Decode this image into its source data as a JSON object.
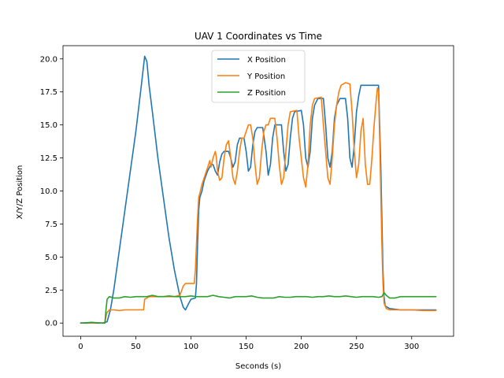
{
  "chart_data": {
    "type": "line",
    "title": "UAV 1 Coordinates vs Time",
    "xlabel": "Seconds (s)",
    "ylabel": "X/Y/Z Position",
    "xlim": [
      -16,
      338
    ],
    "ylim": [
      -1,
      21
    ],
    "xticks": [
      0,
      50,
      100,
      150,
      200,
      250,
      300
    ],
    "yticks": [
      0.0,
      2.5,
      5.0,
      7.5,
      10.0,
      12.5,
      15.0,
      17.5,
      20.0
    ],
    "xtick_labels": [
      "0",
      "50",
      "100",
      "150",
      "200",
      "250",
      "300"
    ],
    "ytick_labels": [
      "0.0",
      "2.5",
      "5.0",
      "7.5",
      "10.0",
      "12.5",
      "15.0",
      "17.5",
      "20.0"
    ],
    "legend": "upper-center",
    "series": [
      {
        "name": "X Position",
        "color": "#1f77b4",
        "points": [
          [
            0,
            0
          ],
          [
            10,
            0.05
          ],
          [
            20,
            0
          ],
          [
            24,
            0.1
          ],
          [
            27,
            1
          ],
          [
            30,
            2.5
          ],
          [
            35,
            5.5
          ],
          [
            40,
            8.5
          ],
          [
            45,
            11.5
          ],
          [
            50,
            14.5
          ],
          [
            55,
            18
          ],
          [
            58,
            20.2
          ],
          [
            60,
            19.8
          ],
          [
            62,
            18
          ],
          [
            65,
            16
          ],
          [
            70,
            12.5
          ],
          [
            75,
            9.5
          ],
          [
            80,
            6.5
          ],
          [
            85,
            4
          ],
          [
            90,
            2
          ],
          [
            93,
            1.2
          ],
          [
            95,
            1
          ],
          [
            98,
            1.5
          ],
          [
            100,
            1.8
          ],
          [
            104,
            1.9
          ],
          [
            105,
            3
          ],
          [
            106,
            6
          ],
          [
            107,
            8.5
          ],
          [
            108,
            9.5
          ],
          [
            110,
            10
          ],
          [
            112,
            10.8
          ],
          [
            115,
            11.5
          ],
          [
            118,
            12
          ],
          [
            120,
            12
          ],
          [
            122,
            11.5
          ],
          [
            124,
            11.2
          ],
          [
            126,
            12.2
          ],
          [
            128,
            12.8
          ],
          [
            130,
            13
          ],
          [
            134,
            13
          ],
          [
            136,
            12.5
          ],
          [
            138,
            11.8
          ],
          [
            140,
            12.2
          ],
          [
            142,
            13.5
          ],
          [
            144,
            14
          ],
          [
            148,
            14
          ],
          [
            150,
            13
          ],
          [
            152,
            11.5
          ],
          [
            154,
            11.8
          ],
          [
            156,
            13.5
          ],
          [
            158,
            14.5
          ],
          [
            160,
            14.8
          ],
          [
            165,
            14.8
          ],
          [
            168,
            13
          ],
          [
            170,
            11.2
          ],
          [
            172,
            12
          ],
          [
            174,
            14
          ],
          [
            176,
            15
          ],
          [
            182,
            15
          ],
          [
            184,
            13
          ],
          [
            186,
            11.5
          ],
          [
            188,
            12
          ],
          [
            190,
            14
          ],
          [
            192,
            15.5
          ],
          [
            194,
            16
          ],
          [
            200,
            16.1
          ],
          [
            202,
            15
          ],
          [
            204,
            12.5
          ],
          [
            206,
            11.8
          ],
          [
            208,
            13
          ],
          [
            210,
            15.5
          ],
          [
            212,
            16.5
          ],
          [
            215,
            17
          ],
          [
            220,
            17
          ],
          [
            222,
            15
          ],
          [
            224,
            12.5
          ],
          [
            226,
            11.8
          ],
          [
            228,
            13
          ],
          [
            230,
            15.5
          ],
          [
            232,
            16.5
          ],
          [
            235,
            17
          ],
          [
            240,
            17
          ],
          [
            242,
            15.5
          ],
          [
            244,
            12.5
          ],
          [
            246,
            11.8
          ],
          [
            248,
            13.5
          ],
          [
            250,
            16
          ],
          [
            252,
            17.2
          ],
          [
            254,
            18
          ],
          [
            265,
            18
          ],
          [
            270,
            18
          ],
          [
            271,
            15
          ],
          [
            272,
            12
          ],
          [
            273,
            8
          ],
          [
            274,
            4
          ],
          [
            275,
            2
          ],
          [
            276,
            1.3
          ],
          [
            280,
            1.1
          ],
          [
            290,
            1
          ],
          [
            300,
            1
          ],
          [
            310,
            1
          ],
          [
            322,
            1
          ]
        ]
      },
      {
        "name": "Y Position",
        "color": "#ff7f0e",
        "points": [
          [
            0,
            0
          ],
          [
            10,
            0
          ],
          [
            20,
            0
          ],
          [
            22,
            0
          ],
          [
            23,
            0.5
          ],
          [
            24,
            0.8
          ],
          [
            26,
            1
          ],
          [
            30,
            1
          ],
          [
            35,
            0.95
          ],
          [
            40,
            1
          ],
          [
            50,
            1
          ],
          [
            55,
            1
          ],
          [
            57,
            1
          ],
          [
            58,
            1.8
          ],
          [
            60,
            1.9
          ],
          [
            62,
            2
          ],
          [
            70,
            2
          ],
          [
            80,
            2
          ],
          [
            85,
            2
          ],
          [
            90,
            2.1
          ],
          [
            93,
            2.8
          ],
          [
            95,
            3
          ],
          [
            100,
            3
          ],
          [
            103,
            3
          ],
          [
            104,
            4
          ],
          [
            105,
            6
          ],
          [
            106,
            8
          ],
          [
            107,
            9.5
          ],
          [
            108,
            9.8
          ],
          [
            110,
            10.5
          ],
          [
            112,
            11
          ],
          [
            114,
            11.5
          ],
          [
            116,
            12
          ],
          [
            117,
            12.3
          ],
          [
            118,
            11.8
          ],
          [
            120,
            12.5
          ],
          [
            122,
            13
          ],
          [
            123,
            12.5
          ],
          [
            124,
            11.5
          ],
          [
            126,
            10.8
          ],
          [
            128,
            11
          ],
          [
            130,
            12.5
          ],
          [
            132,
            13.5
          ],
          [
            134,
            13.8
          ],
          [
            136,
            12.5
          ],
          [
            138,
            11
          ],
          [
            140,
            10.5
          ],
          [
            142,
            11.5
          ],
          [
            144,
            13
          ],
          [
            146,
            14
          ],
          [
            148,
            14
          ],
          [
            150,
            14.5
          ],
          [
            152,
            15
          ],
          [
            154,
            15
          ],
          [
            156,
            14
          ],
          [
            158,
            12
          ],
          [
            160,
            10.5
          ],
          [
            162,
            11
          ],
          [
            164,
            13
          ],
          [
            166,
            14.5
          ],
          [
            168,
            15
          ],
          [
            170,
            15
          ],
          [
            172,
            15.5
          ],
          [
            176,
            15.5
          ],
          [
            178,
            14
          ],
          [
            180,
            12
          ],
          [
            182,
            10.5
          ],
          [
            184,
            11
          ],
          [
            186,
            13
          ],
          [
            188,
            15
          ],
          [
            190,
            16
          ],
          [
            196,
            16.1
          ],
          [
            198,
            14
          ],
          [
            200,
            12.5
          ],
          [
            202,
            11
          ],
          [
            204,
            10.3
          ],
          [
            206,
            12
          ],
          [
            208,
            15
          ],
          [
            210,
            16.5
          ],
          [
            212,
            17
          ],
          [
            218,
            17.1
          ],
          [
            220,
            15
          ],
          [
            222,
            13
          ],
          [
            224,
            11
          ],
          [
            226,
            10.5
          ],
          [
            228,
            12.5
          ],
          [
            230,
            15
          ],
          [
            232,
            16.5
          ],
          [
            234,
            17.5
          ],
          [
            236,
            18
          ],
          [
            240,
            18.2
          ],
          [
            244,
            18.1
          ],
          [
            246,
            16
          ],
          [
            248,
            13
          ],
          [
            250,
            11
          ],
          [
            252,
            12
          ],
          [
            254,
            14.5
          ],
          [
            256,
            15.5
          ],
          [
            258,
            12
          ],
          [
            260,
            10.5
          ],
          [
            262,
            10.5
          ],
          [
            264,
            12.5
          ],
          [
            266,
            15
          ],
          [
            268,
            17
          ],
          [
            269,
            17.8
          ],
          [
            270,
            17.5
          ],
          [
            271,
            14
          ],
          [
            272,
            10
          ],
          [
            273,
            6
          ],
          [
            274,
            3
          ],
          [
            275,
            1.5
          ],
          [
            277,
            1.1
          ],
          [
            280,
            1
          ],
          [
            290,
            1
          ],
          [
            300,
            1
          ],
          [
            310,
            0.95
          ],
          [
            322,
            0.95
          ]
        ]
      },
      {
        "name": "Z Position",
        "color": "#2ca02c",
        "points": [
          [
            0,
            0
          ],
          [
            5,
            0
          ],
          [
            10,
            0.05
          ],
          [
            15,
            0
          ],
          [
            20,
            0
          ],
          [
            22,
            0
          ],
          [
            23,
            1
          ],
          [
            24,
            1.8
          ],
          [
            26,
            2
          ],
          [
            30,
            1.9
          ],
          [
            35,
            1.9
          ],
          [
            40,
            2
          ],
          [
            45,
            1.95
          ],
          [
            50,
            2
          ],
          [
            55,
            2
          ],
          [
            60,
            2
          ],
          [
            65,
            2.1
          ],
          [
            70,
            2
          ],
          [
            75,
            2
          ],
          [
            80,
            2.05
          ],
          [
            85,
            2
          ],
          [
            90,
            2
          ],
          [
            95,
            2
          ],
          [
            100,
            2.05
          ],
          [
            105,
            2
          ],
          [
            110,
            2
          ],
          [
            115,
            2
          ],
          [
            120,
            2.1
          ],
          [
            125,
            2
          ],
          [
            130,
            1.95
          ],
          [
            135,
            1.9
          ],
          [
            140,
            2
          ],
          [
            145,
            2
          ],
          [
            150,
            2
          ],
          [
            155,
            2.05
          ],
          [
            160,
            1.95
          ],
          [
            165,
            1.9
          ],
          [
            170,
            1.9
          ],
          [
            175,
            1.9
          ],
          [
            180,
            2
          ],
          [
            185,
            1.95
          ],
          [
            190,
            1.95
          ],
          [
            195,
            2
          ],
          [
            200,
            2
          ],
          [
            205,
            2
          ],
          [
            210,
            1.95
          ],
          [
            215,
            2
          ],
          [
            220,
            2
          ],
          [
            225,
            2.05
          ],
          [
            230,
            2
          ],
          [
            235,
            2
          ],
          [
            240,
            2.05
          ],
          [
            245,
            2
          ],
          [
            250,
            1.95
          ],
          [
            255,
            2
          ],
          [
            260,
            2
          ],
          [
            265,
            2
          ],
          [
            270,
            1.95
          ],
          [
            273,
            2
          ],
          [
            275,
            2.3
          ],
          [
            277,
            2.1
          ],
          [
            280,
            1.9
          ],
          [
            285,
            1.9
          ],
          [
            290,
            2
          ],
          [
            295,
            2
          ],
          [
            300,
            2
          ],
          [
            305,
            2
          ],
          [
            310,
            2
          ],
          [
            315,
            2
          ],
          [
            322,
            2
          ]
        ]
      }
    ]
  }
}
